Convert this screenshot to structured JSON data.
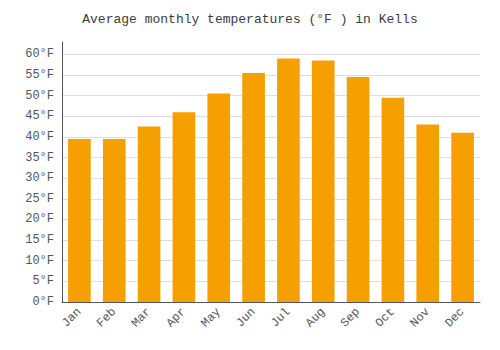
{
  "chart_data": {
    "type": "bar",
    "title": "Average monthly temperatures (°F ) in Kells",
    "categories": [
      "Jan",
      "Feb",
      "Mar",
      "Apr",
      "May",
      "Jun",
      "Jul",
      "Aug",
      "Sep",
      "Oct",
      "Nov",
      "Dec"
    ],
    "values": [
      39.5,
      39.5,
      42.5,
      46.0,
      50.5,
      55.5,
      59.0,
      58.5,
      54.5,
      49.5,
      43.0,
      41.0
    ],
    "color": "#F5A000",
    "ylim": [
      0,
      63
    ],
    "yticks": [
      {
        "value": 0,
        "label": "0°F"
      },
      {
        "value": 5,
        "label": "5°F"
      },
      {
        "value": 10,
        "label": "10°F"
      },
      {
        "value": 15,
        "label": "15°F"
      },
      {
        "value": 20,
        "label": "20°F"
      },
      {
        "value": 25,
        "label": "25°F"
      },
      {
        "value": 30,
        "label": "30°F"
      },
      {
        "value": 35,
        "label": "35°F"
      },
      {
        "value": 40,
        "label": "40°F"
      },
      {
        "value": 45,
        "label": "45°F"
      },
      {
        "value": 50,
        "label": "50°F"
      },
      {
        "value": 55,
        "label": "55°F"
      },
      {
        "value": 60,
        "label": "60°F"
      }
    ],
    "grid": true
  }
}
